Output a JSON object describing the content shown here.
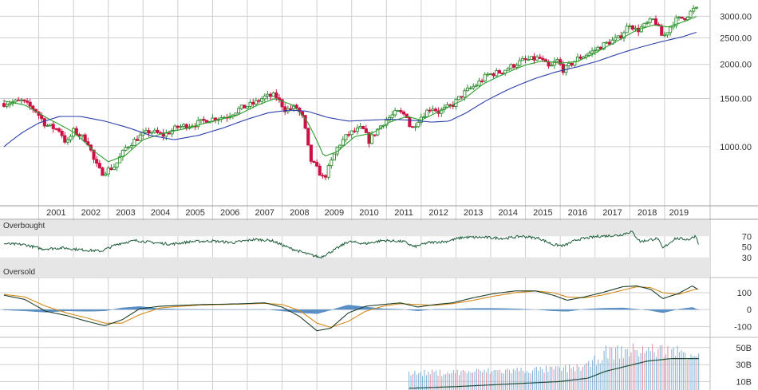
{
  "chart_data": {
    "type": "candlestick_multi_panel",
    "colors": {
      "up": "#2e8b2e",
      "down": "#cc1144",
      "sma_short": "#2e9e2e",
      "sma_long": "#2a3fa8",
      "rsi": "#1f5f3a",
      "macd": "#1f3f2a",
      "signal": "#d48a1a",
      "hist": "#5a8fc6",
      "volume": "#7fb0d6",
      "volume_alt": "#d890a8",
      "volume_avg": "#1f4f3a",
      "zone": "#e6e6e6"
    },
    "x_axis": {
      "labels": [
        "2001",
        "2002",
        "2003",
        "2004",
        "2005",
        "2006",
        "2007",
        "2008",
        "2009",
        "2010",
        "2011",
        "2012",
        "2013",
        "2014",
        "2015",
        "2016",
        "2017",
        "2018",
        "2019"
      ]
    },
    "price_panel": {
      "scale": "log",
      "y_ticks": [
        1000,
        1500,
        2000,
        2500,
        3000
      ],
      "y_tick_labels": [
        "1000.00",
        "1500.00",
        "2000.00",
        "2500.00",
        "3000.00"
      ],
      "ylim": [
        620,
        3350
      ],
      "x_range": [
        2000.0,
        2019.99
      ],
      "close_keypoints": [
        [
          2000.0,
          1440
        ],
        [
          2000.5,
          1470
        ],
        [
          2000.9,
          1360
        ],
        [
          2001.2,
          1200
        ],
        [
          2001.6,
          1150
        ],
        [
          2001.8,
          1020
        ],
        [
          2002.0,
          1140
        ],
        [
          2002.4,
          1050
        ],
        [
          2002.6,
          880
        ],
        [
          2002.8,
          800
        ],
        [
          2003.2,
          850
        ],
        [
          2003.5,
          990
        ],
        [
          2003.9,
          1090
        ],
        [
          2004.2,
          1140
        ],
        [
          2004.6,
          1100
        ],
        [
          2005.0,
          1180
        ],
        [
          2005.5,
          1210
        ],
        [
          2005.9,
          1260
        ],
        [
          2006.4,
          1290
        ],
        [
          2006.8,
          1380
        ],
        [
          2007.2,
          1440
        ],
        [
          2007.5,
          1520
        ],
        [
          2007.8,
          1540
        ],
        [
          2008.1,
          1360
        ],
        [
          2008.4,
          1400
        ],
        [
          2008.6,
          1270
        ],
        [
          2008.8,
          900
        ],
        [
          2009.2,
          760
        ],
        [
          2009.4,
          870
        ],
        [
          2009.6,
          1000
        ],
        [
          2009.9,
          1110
        ],
        [
          2010.3,
          1170
        ],
        [
          2010.5,
          1050
        ],
        [
          2010.9,
          1220
        ],
        [
          2011.3,
          1340
        ],
        [
          2011.6,
          1300
        ],
        [
          2011.7,
          1140
        ],
        [
          2011.9,
          1250
        ],
        [
          2012.3,
          1400
        ],
        [
          2012.5,
          1340
        ],
        [
          2012.9,
          1420
        ],
        [
          2013.3,
          1600
        ],
        [
          2013.6,
          1690
        ],
        [
          2013.9,
          1830
        ],
        [
          2014.3,
          1880
        ],
        [
          2014.6,
          1970
        ],
        [
          2014.9,
          2060
        ],
        [
          2015.4,
          2110
        ],
        [
          2015.7,
          1930
        ],
        [
          2015.9,
          2080
        ],
        [
          2016.1,
          1900
        ],
        [
          2016.5,
          2100
        ],
        [
          2016.9,
          2220
        ],
        [
          2017.3,
          2380
        ],
        [
          2017.7,
          2500
        ],
        [
          2018.0,
          2820
        ],
        [
          2018.2,
          2650
        ],
        [
          2018.7,
          2930
        ],
        [
          2018.95,
          2500
        ],
        [
          2019.3,
          2900
        ],
        [
          2019.6,
          2980
        ],
        [
          2019.8,
          3150
        ],
        [
          2019.9,
          3230
        ],
        [
          2019.99,
          2950
        ]
      ],
      "sma_short_keypoints": [
        [
          2000.0,
          1470
        ],
        [
          2000.6,
          1420
        ],
        [
          2001.3,
          1260
        ],
        [
          2002.0,
          1130
        ],
        [
          2002.6,
          960
        ],
        [
          2003.0,
          880
        ],
        [
          2003.5,
          930
        ],
        [
          2004.0,
          1060
        ],
        [
          2004.6,
          1120
        ],
        [
          2005.3,
          1170
        ],
        [
          2006.0,
          1240
        ],
        [
          2006.7,
          1300
        ],
        [
          2007.3,
          1420
        ],
        [
          2007.8,
          1500
        ],
        [
          2008.3,
          1420
        ],
        [
          2008.7,
          1250
        ],
        [
          2009.2,
          920
        ],
        [
          2009.6,
          960
        ],
        [
          2010.1,
          1090
        ],
        [
          2010.6,
          1120
        ],
        [
          2011.1,
          1230
        ],
        [
          2011.6,
          1290
        ],
        [
          2012.0,
          1250
        ],
        [
          2012.6,
          1360
        ],
        [
          2013.2,
          1480
        ],
        [
          2013.8,
          1700
        ],
        [
          2014.4,
          1850
        ],
        [
          2015.0,
          1990
        ],
        [
          2015.5,
          2060
        ],
        [
          2016.0,
          2020
        ],
        [
          2016.5,
          2050
        ],
        [
          2017.0,
          2200
        ],
        [
          2017.6,
          2420
        ],
        [
          2018.2,
          2670
        ],
        [
          2018.7,
          2790
        ],
        [
          2019.1,
          2740
        ],
        [
          2019.6,
          2880
        ],
        [
          2019.99,
          3020
        ]
      ],
      "sma_long_keypoints": [
        [
          2000.0,
          1000
        ],
        [
          2000.5,
          1120
        ],
        [
          2001.0,
          1220
        ],
        [
          2001.6,
          1290
        ],
        [
          2002.2,
          1290
        ],
        [
          2002.9,
          1240
        ],
        [
          2003.6,
          1170
        ],
        [
          2004.2,
          1100
        ],
        [
          2004.9,
          1060
        ],
        [
          2005.6,
          1100
        ],
        [
          2006.3,
          1170
        ],
        [
          2007.0,
          1260
        ],
        [
          2007.6,
          1330
        ],
        [
          2008.2,
          1360
        ],
        [
          2008.7,
          1350
        ],
        [
          2009.3,
          1280
        ],
        [
          2009.9,
          1240
        ],
        [
          2010.5,
          1250
        ],
        [
          2011.1,
          1260
        ],
        [
          2011.7,
          1250
        ],
        [
          2012.3,
          1230
        ],
        [
          2012.8,
          1240
        ],
        [
          2013.3,
          1330
        ],
        [
          2013.9,
          1480
        ],
        [
          2014.6,
          1640
        ],
        [
          2015.3,
          1780
        ],
        [
          2015.9,
          1880
        ],
        [
          2016.5,
          1960
        ],
        [
          2017.1,
          2060
        ],
        [
          2017.7,
          2190
        ],
        [
          2018.3,
          2310
        ],
        [
          2018.9,
          2420
        ],
        [
          2019.5,
          2520
        ],
        [
          2019.99,
          2640
        ]
      ]
    },
    "rsi_panel": {
      "y_ticks": [
        30,
        50,
        70
      ],
      "y_tick_labels": [
        "30",
        "50",
        "70"
      ],
      "ylim": [
        10,
        90
      ],
      "overbought_level": 70,
      "oversold_level": 30,
      "overbought_label": "Overbought",
      "oversold_label": "Oversold",
      "keypoints": [
        [
          2000.0,
          56
        ],
        [
          2000.6,
          54
        ],
        [
          2001.1,
          46
        ],
        [
          2001.7,
          48
        ],
        [
          2002.3,
          44
        ],
        [
          2002.8,
          42
        ],
        [
          2003.3,
          56
        ],
        [
          2003.8,
          62
        ],
        [
          2004.3,
          58
        ],
        [
          2004.8,
          55
        ],
        [
          2005.4,
          60
        ],
        [
          2006.0,
          61
        ],
        [
          2006.6,
          58
        ],
        [
          2007.2,
          64
        ],
        [
          2007.7,
          62
        ],
        [
          2008.2,
          48
        ],
        [
          2008.7,
          37
        ],
        [
          2009.1,
          30
        ],
        [
          2009.5,
          44
        ],
        [
          2009.9,
          60
        ],
        [
          2010.4,
          56
        ],
        [
          2010.9,
          62
        ],
        [
          2011.5,
          60
        ],
        [
          2011.8,
          50
        ],
        [
          2012.2,
          58
        ],
        [
          2012.7,
          60
        ],
        [
          2013.2,
          68
        ],
        [
          2013.8,
          68
        ],
        [
          2014.4,
          66
        ],
        [
          2014.9,
          70
        ],
        [
          2015.4,
          66
        ],
        [
          2015.8,
          54
        ],
        [
          2016.1,
          52
        ],
        [
          2016.5,
          64
        ],
        [
          2017.1,
          70
        ],
        [
          2017.7,
          72
        ],
        [
          2018.05,
          79
        ],
        [
          2018.3,
          60
        ],
        [
          2018.8,
          66
        ],
        [
          2018.95,
          47
        ],
        [
          2019.3,
          66
        ],
        [
          2019.7,
          64
        ],
        [
          2019.9,
          71
        ],
        [
          2019.99,
          54
        ]
      ]
    },
    "macd_panel": {
      "y_ticks": [
        -100,
        0,
        100
      ],
      "y_tick_labels": [
        "-100",
        "0",
        "100"
      ],
      "ylim": [
        -150,
        180
      ],
      "macd_keypoints": [
        [
          2000.0,
          85
        ],
        [
          2000.6,
          60
        ],
        [
          2001.2,
          -10
        ],
        [
          2001.8,
          -35
        ],
        [
          2002.4,
          -70
        ],
        [
          2002.9,
          -95
        ],
        [
          2003.4,
          -60
        ],
        [
          2003.9,
          5
        ],
        [
          2004.5,
          20
        ],
        [
          2005.1,
          25
        ],
        [
          2005.7,
          30
        ],
        [
          2006.3,
          32
        ],
        [
          2006.9,
          35
        ],
        [
          2007.5,
          40
        ],
        [
          2008.0,
          15
        ],
        [
          2008.5,
          -40
        ],
        [
          2009.0,
          -125
        ],
        [
          2009.4,
          -110
        ],
        [
          2009.9,
          -20
        ],
        [
          2010.4,
          20
        ],
        [
          2010.9,
          30
        ],
        [
          2011.4,
          40
        ],
        [
          2011.9,
          15
        ],
        [
          2012.4,
          30
        ],
        [
          2012.9,
          40
        ],
        [
          2013.5,
          70
        ],
        [
          2014.1,
          95
        ],
        [
          2014.7,
          110
        ],
        [
          2015.3,
          110
        ],
        [
          2015.8,
          85
        ],
        [
          2016.2,
          55
        ],
        [
          2016.7,
          75
        ],
        [
          2017.2,
          100
        ],
        [
          2017.8,
          135
        ],
        [
          2018.2,
          140
        ],
        [
          2018.6,
          120
        ],
        [
          2018.95,
          65
        ],
        [
          2019.4,
          95
        ],
        [
          2019.8,
          140
        ],
        [
          2019.99,
          115
        ]
      ],
      "signal_keypoints": [
        [
          2000.0,
          90
        ],
        [
          2000.6,
          75
        ],
        [
          2001.2,
          20
        ],
        [
          2001.8,
          -20
        ],
        [
          2002.4,
          -50
        ],
        [
          2002.9,
          -80
        ],
        [
          2003.4,
          -80
        ],
        [
          2003.9,
          -30
        ],
        [
          2004.5,
          10
        ],
        [
          2005.1,
          20
        ],
        [
          2005.7,
          27
        ],
        [
          2006.3,
          30
        ],
        [
          2006.9,
          33
        ],
        [
          2007.5,
          37
        ],
        [
          2008.0,
          30
        ],
        [
          2008.5,
          -5
        ],
        [
          2009.0,
          -80
        ],
        [
          2009.4,
          -105
        ],
        [
          2009.9,
          -70
        ],
        [
          2010.4,
          -10
        ],
        [
          2010.9,
          20
        ],
        [
          2011.4,
          35
        ],
        [
          2011.9,
          30
        ],
        [
          2012.4,
          25
        ],
        [
          2012.9,
          35
        ],
        [
          2013.5,
          55
        ],
        [
          2014.1,
          80
        ],
        [
          2014.7,
          100
        ],
        [
          2015.3,
          110
        ],
        [
          2015.8,
          100
        ],
        [
          2016.2,
          75
        ],
        [
          2016.7,
          70
        ],
        [
          2017.2,
          85
        ],
        [
          2017.8,
          115
        ],
        [
          2018.2,
          135
        ],
        [
          2018.6,
          130
        ],
        [
          2018.95,
          100
        ],
        [
          2019.4,
          90
        ],
        [
          2019.8,
          115
        ],
        [
          2019.99,
          125
        ]
      ]
    },
    "volume_panel": {
      "y_ticks": [
        10,
        30,
        50
      ],
      "y_tick_labels": [
        "10B",
        "30B",
        "50B"
      ],
      "ylim": [
        0,
        62
      ],
      "start_year": 2011.65,
      "level_keypoints": [
        [
          2011.65,
          22
        ],
        [
          2013.0,
          24
        ],
        [
          2014.5,
          26
        ],
        [
          2016.0,
          28
        ],
        [
          2016.8,
          32
        ],
        [
          2017.3,
          50
        ],
        [
          2017.9,
          52
        ],
        [
          2018.5,
          54
        ],
        [
          2019.2,
          52
        ],
        [
          2019.99,
          50
        ]
      ],
      "avg_keypoints": [
        [
          2011.65,
          2
        ],
        [
          2013.0,
          4
        ],
        [
          2014.5,
          7
        ],
        [
          2016.0,
          10
        ],
        [
          2016.8,
          14
        ],
        [
          2017.3,
          22
        ],
        [
          2017.9,
          28
        ],
        [
          2018.5,
          34
        ],
        [
          2019.2,
          37
        ],
        [
          2019.99,
          37
        ]
      ]
    }
  }
}
